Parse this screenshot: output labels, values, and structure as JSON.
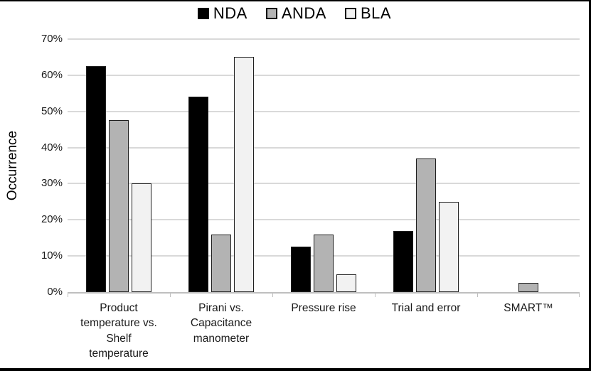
{
  "chart_data": {
    "type": "bar",
    "title": "",
    "xlabel": "",
    "ylabel": "Occurrence",
    "ylim": [
      0,
      70
    ],
    "y_ticks": [
      "0%",
      "10%",
      "20%",
      "30%",
      "40%",
      "50%",
      "60%",
      "70%"
    ],
    "grid": "horizontal",
    "legend_position": "top-center",
    "categories": [
      "Product temperature vs. Shelf temperature",
      "Pirani vs. Capacitance manometer",
      "Pressure rise",
      "Trial and error",
      "SMART™"
    ],
    "series": [
      {
        "name": "NDA",
        "color": "#000000",
        "values": [
          62.5,
          54,
          12.5,
          17,
          0
        ]
      },
      {
        "name": "ANDA",
        "color": "#b3b3b3",
        "values": [
          47.5,
          16,
          16,
          37,
          2.5
        ]
      },
      {
        "name": "BLA",
        "color": "#f2f2f2",
        "values": [
          30,
          65,
          5,
          25,
          0
        ]
      }
    ],
    "colors": {
      "gridline": "#d9d9d9",
      "axis_line": "#bfbfbf",
      "text": "#1a1a1a",
      "bar_border": "#1f1f1f"
    }
  }
}
